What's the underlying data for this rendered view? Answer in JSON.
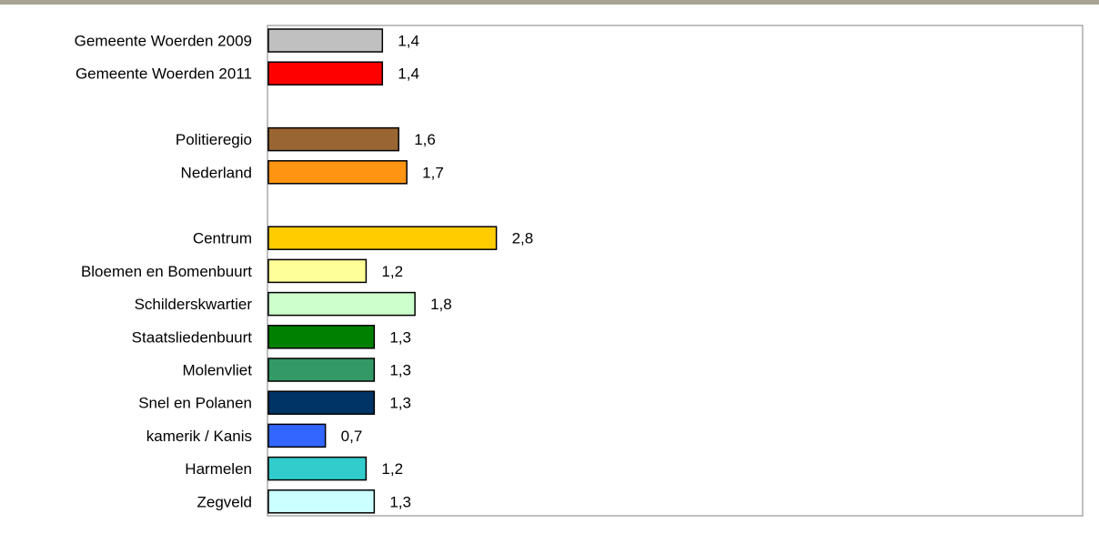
{
  "chart_data": {
    "type": "bar",
    "orientation": "horizontal",
    "title": "",
    "xlabel": "",
    "ylabel": "",
    "xlim": [
      0,
      10
    ],
    "grid": false,
    "legend": "none",
    "categories": [
      "Gemeente Woerden 2009",
      "Gemeente Woerden 2011",
      "",
      "Politieregio",
      "Nederland",
      "",
      "Centrum",
      "Bloemen en Bomenbuurt",
      "Schilderskwartier",
      "Staatsliedenbuurt",
      "Molenvliet",
      "Snel en Polanen",
      "kamerik / Kanis",
      "Harmelen",
      "Zegveld"
    ],
    "values": [
      1.4,
      1.4,
      null,
      1.6,
      1.7,
      null,
      2.8,
      1.2,
      1.8,
      1.3,
      1.3,
      1.3,
      0.7,
      1.2,
      1.3
    ],
    "value_labels": [
      "1,4",
      "1,4",
      "",
      "1,6",
      "1,7",
      "",
      "2,8",
      "1,2",
      "1,8",
      "1,3",
      "1,3",
      "1,3",
      "0,7",
      "1,2",
      "1,3"
    ],
    "colors": [
      "#c0c0c0",
      "#ff0000",
      "",
      "#996633",
      "#ff9412",
      "",
      "#ffcc00",
      "#ffff99",
      "#ccffcc",
      "#008000",
      "#339966",
      "#003366",
      "#3366ff",
      "#33cccc",
      "#ccffff"
    ]
  }
}
